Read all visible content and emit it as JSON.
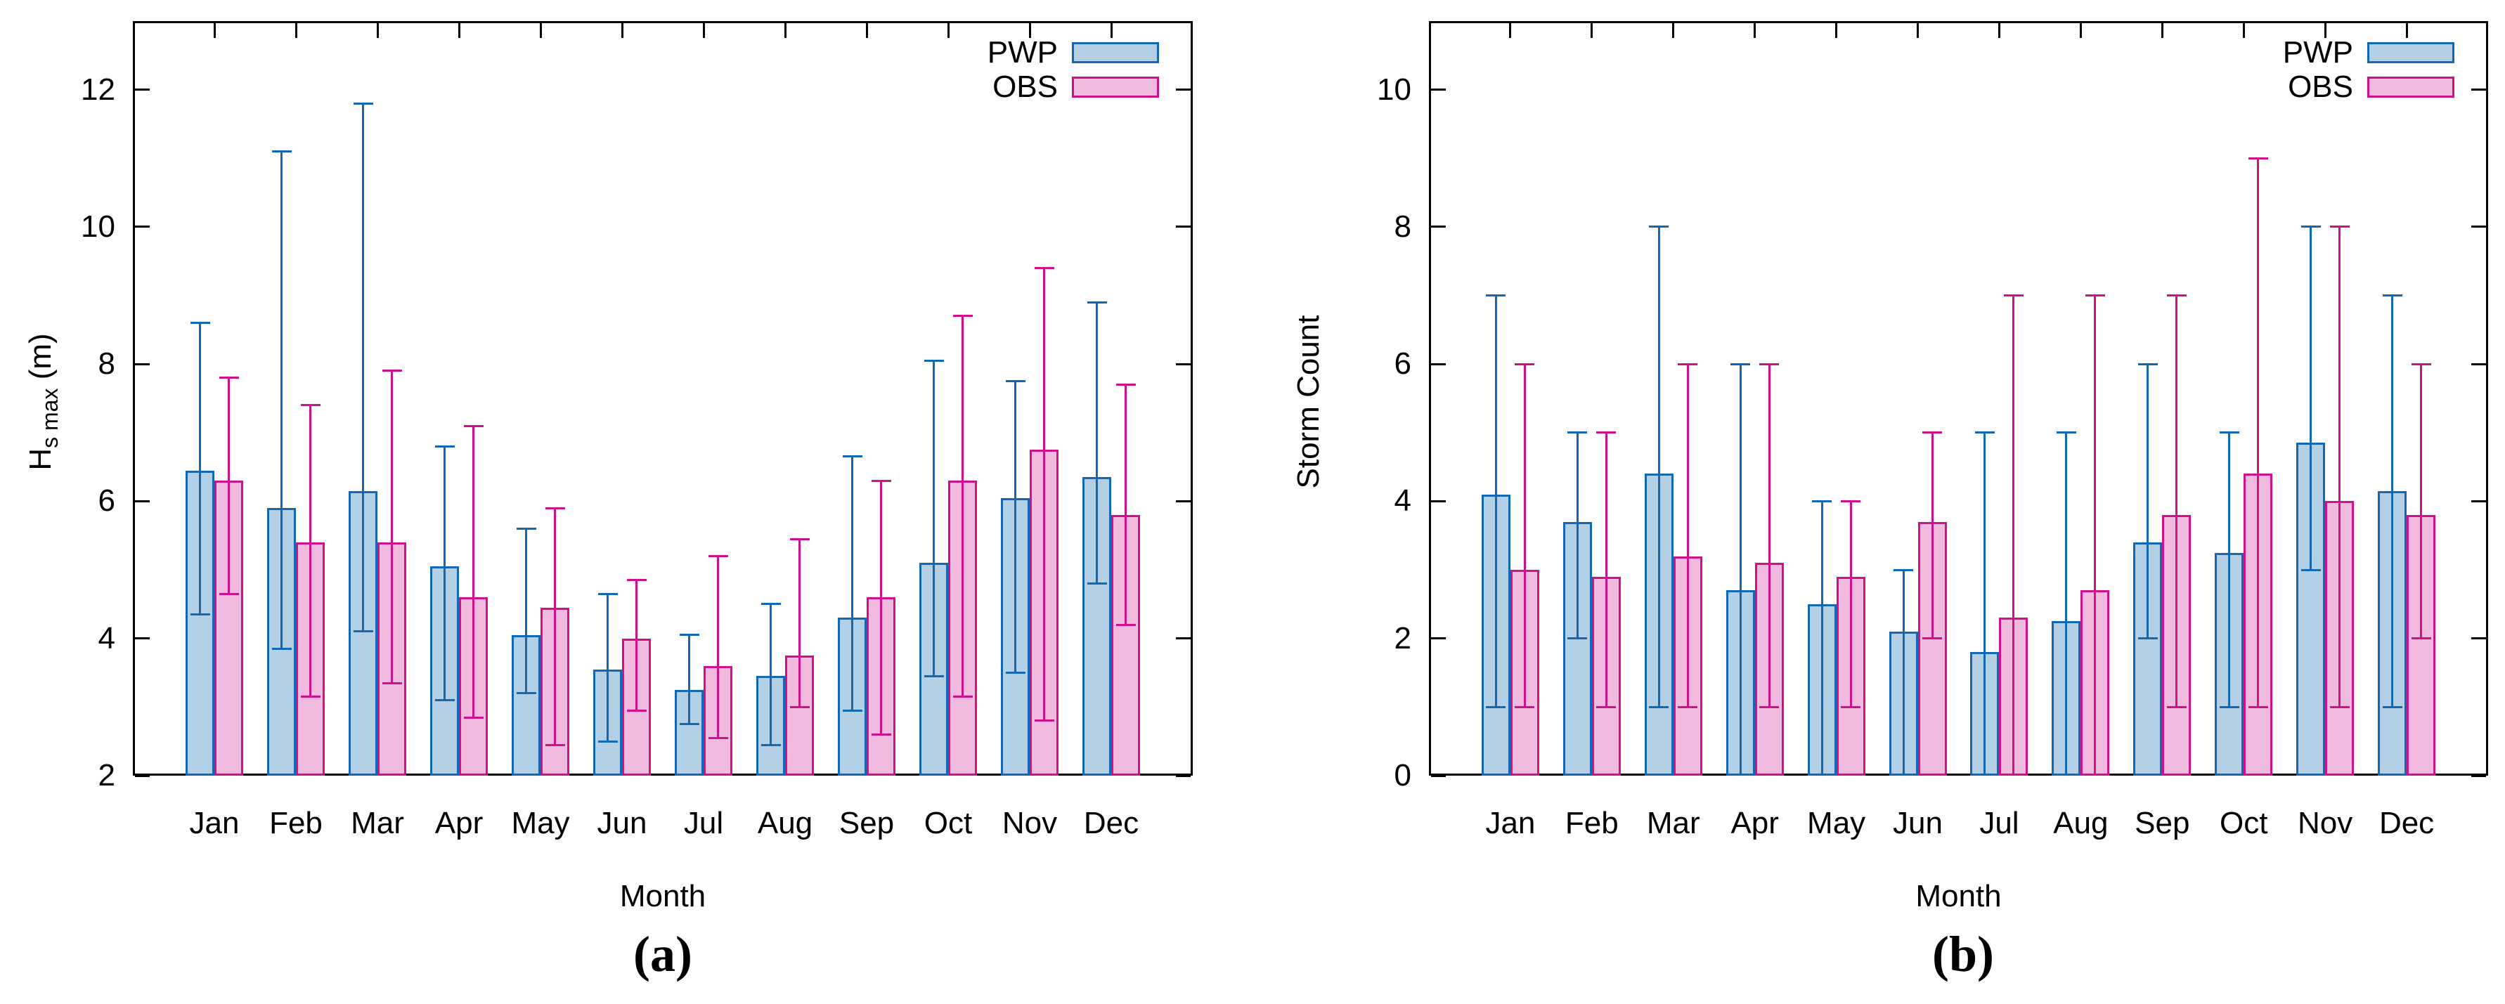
{
  "captions": {
    "a": "(a)",
    "b": "(b)"
  },
  "chart_data": [
    {
      "id": "a",
      "type": "bar",
      "caption": "(a)",
      "xlabel": "Month",
      "ylabel": {
        "base": "H",
        "sub": "s  max",
        "suffix": " (m)"
      },
      "y_axis": {
        "min": 2,
        "max": 13,
        "tick_values": [
          2,
          4,
          6,
          8,
          10,
          12
        ],
        "tick_labels": [
          "2",
          "4",
          "6",
          "8",
          "10",
          "12"
        ]
      },
      "categories": [
        "Jan",
        "Feb",
        "Mar",
        "Apr",
        "May",
        "Jun",
        "Jul",
        "Aug",
        "Sep",
        "Oct",
        "Nov",
        "Dec"
      ],
      "legend_position": "top-right-inside",
      "grid": false,
      "series": [
        {
          "name": "PWP",
          "fill": "#b4d0e7",
          "stroke": "#1268b2",
          "values": [
            6.45,
            5.9,
            6.15,
            5.05,
            4.05,
            3.55,
            3.25,
            3.45,
            4.3,
            5.1,
            6.05,
            6.35
          ],
          "err_low": [
            4.35,
            3.85,
            4.1,
            3.1,
            3.2,
            2.5,
            2.75,
            2.45,
            2.95,
            3.45,
            3.5,
            4.8
          ],
          "err_high": [
            8.6,
            11.1,
            11.8,
            6.8,
            5.6,
            4.65,
            4.05,
            4.5,
            6.65,
            8.05,
            7.75,
            8.9
          ]
        },
        {
          "name": "OBS",
          "fill": "#f0b9de",
          "stroke": "#d1108c",
          "values": [
            6.3,
            5.4,
            5.4,
            4.6,
            4.45,
            4.0,
            3.6,
            3.75,
            4.6,
            6.3,
            6.75,
            5.8
          ],
          "err_low": [
            4.65,
            3.15,
            3.35,
            2.85,
            2.45,
            2.95,
            2.55,
            3.0,
            2.6,
            3.15,
            2.8,
            4.2
          ],
          "err_high": [
            7.8,
            7.4,
            7.9,
            7.1,
            5.9,
            4.85,
            5.2,
            5.45,
            6.3,
            8.7,
            9.4,
            7.7
          ]
        }
      ]
    },
    {
      "id": "b",
      "type": "bar",
      "caption": "(b)",
      "xlabel": "Month",
      "ylabel": {
        "base": "Storm Count"
      },
      "y_axis": {
        "min": 0,
        "max": 11,
        "tick_values": [
          0,
          2,
          4,
          6,
          8,
          10
        ],
        "tick_labels": [
          "0",
          "2",
          "4",
          "6",
          "8",
          "10"
        ]
      },
      "categories": [
        "Jan",
        "Feb",
        "Mar",
        "Apr",
        "May",
        "Jun",
        "Jul",
        "Aug",
        "Sep",
        "Oct",
        "Nov",
        "Dec"
      ],
      "legend_position": "top-right-inside",
      "grid": false,
      "series": [
        {
          "name": "PWP",
          "fill": "#b4d0e7",
          "stroke": "#1268b2",
          "values": [
            4.1,
            3.7,
            4.4,
            2.7,
            2.5,
            2.1,
            1.8,
            2.25,
            3.4,
            3.25,
            4.85,
            4.15
          ],
          "err_low": [
            1,
            2,
            1,
            0,
            0,
            0,
            0,
            0,
            2,
            1,
            3,
            1
          ],
          "err_high": [
            7,
            5,
            8,
            6,
            4,
            3,
            5,
            5,
            6,
            5,
            8,
            7
          ]
        },
        {
          "name": "OBS",
          "fill": "#f0b9de",
          "stroke": "#d1108c",
          "values": [
            3.0,
            2.9,
            3.2,
            3.1,
            2.9,
            3.7,
            2.3,
            2.7,
            3.8,
            4.4,
            4.0,
            3.8
          ],
          "err_low": [
            1,
            1,
            1,
            1,
            1,
            2,
            0,
            0,
            1,
            1,
            1,
            2
          ],
          "err_high": [
            6,
            5,
            6,
            6,
            4,
            5,
            7,
            7,
            7,
            9,
            8,
            6
          ]
        }
      ]
    }
  ]
}
